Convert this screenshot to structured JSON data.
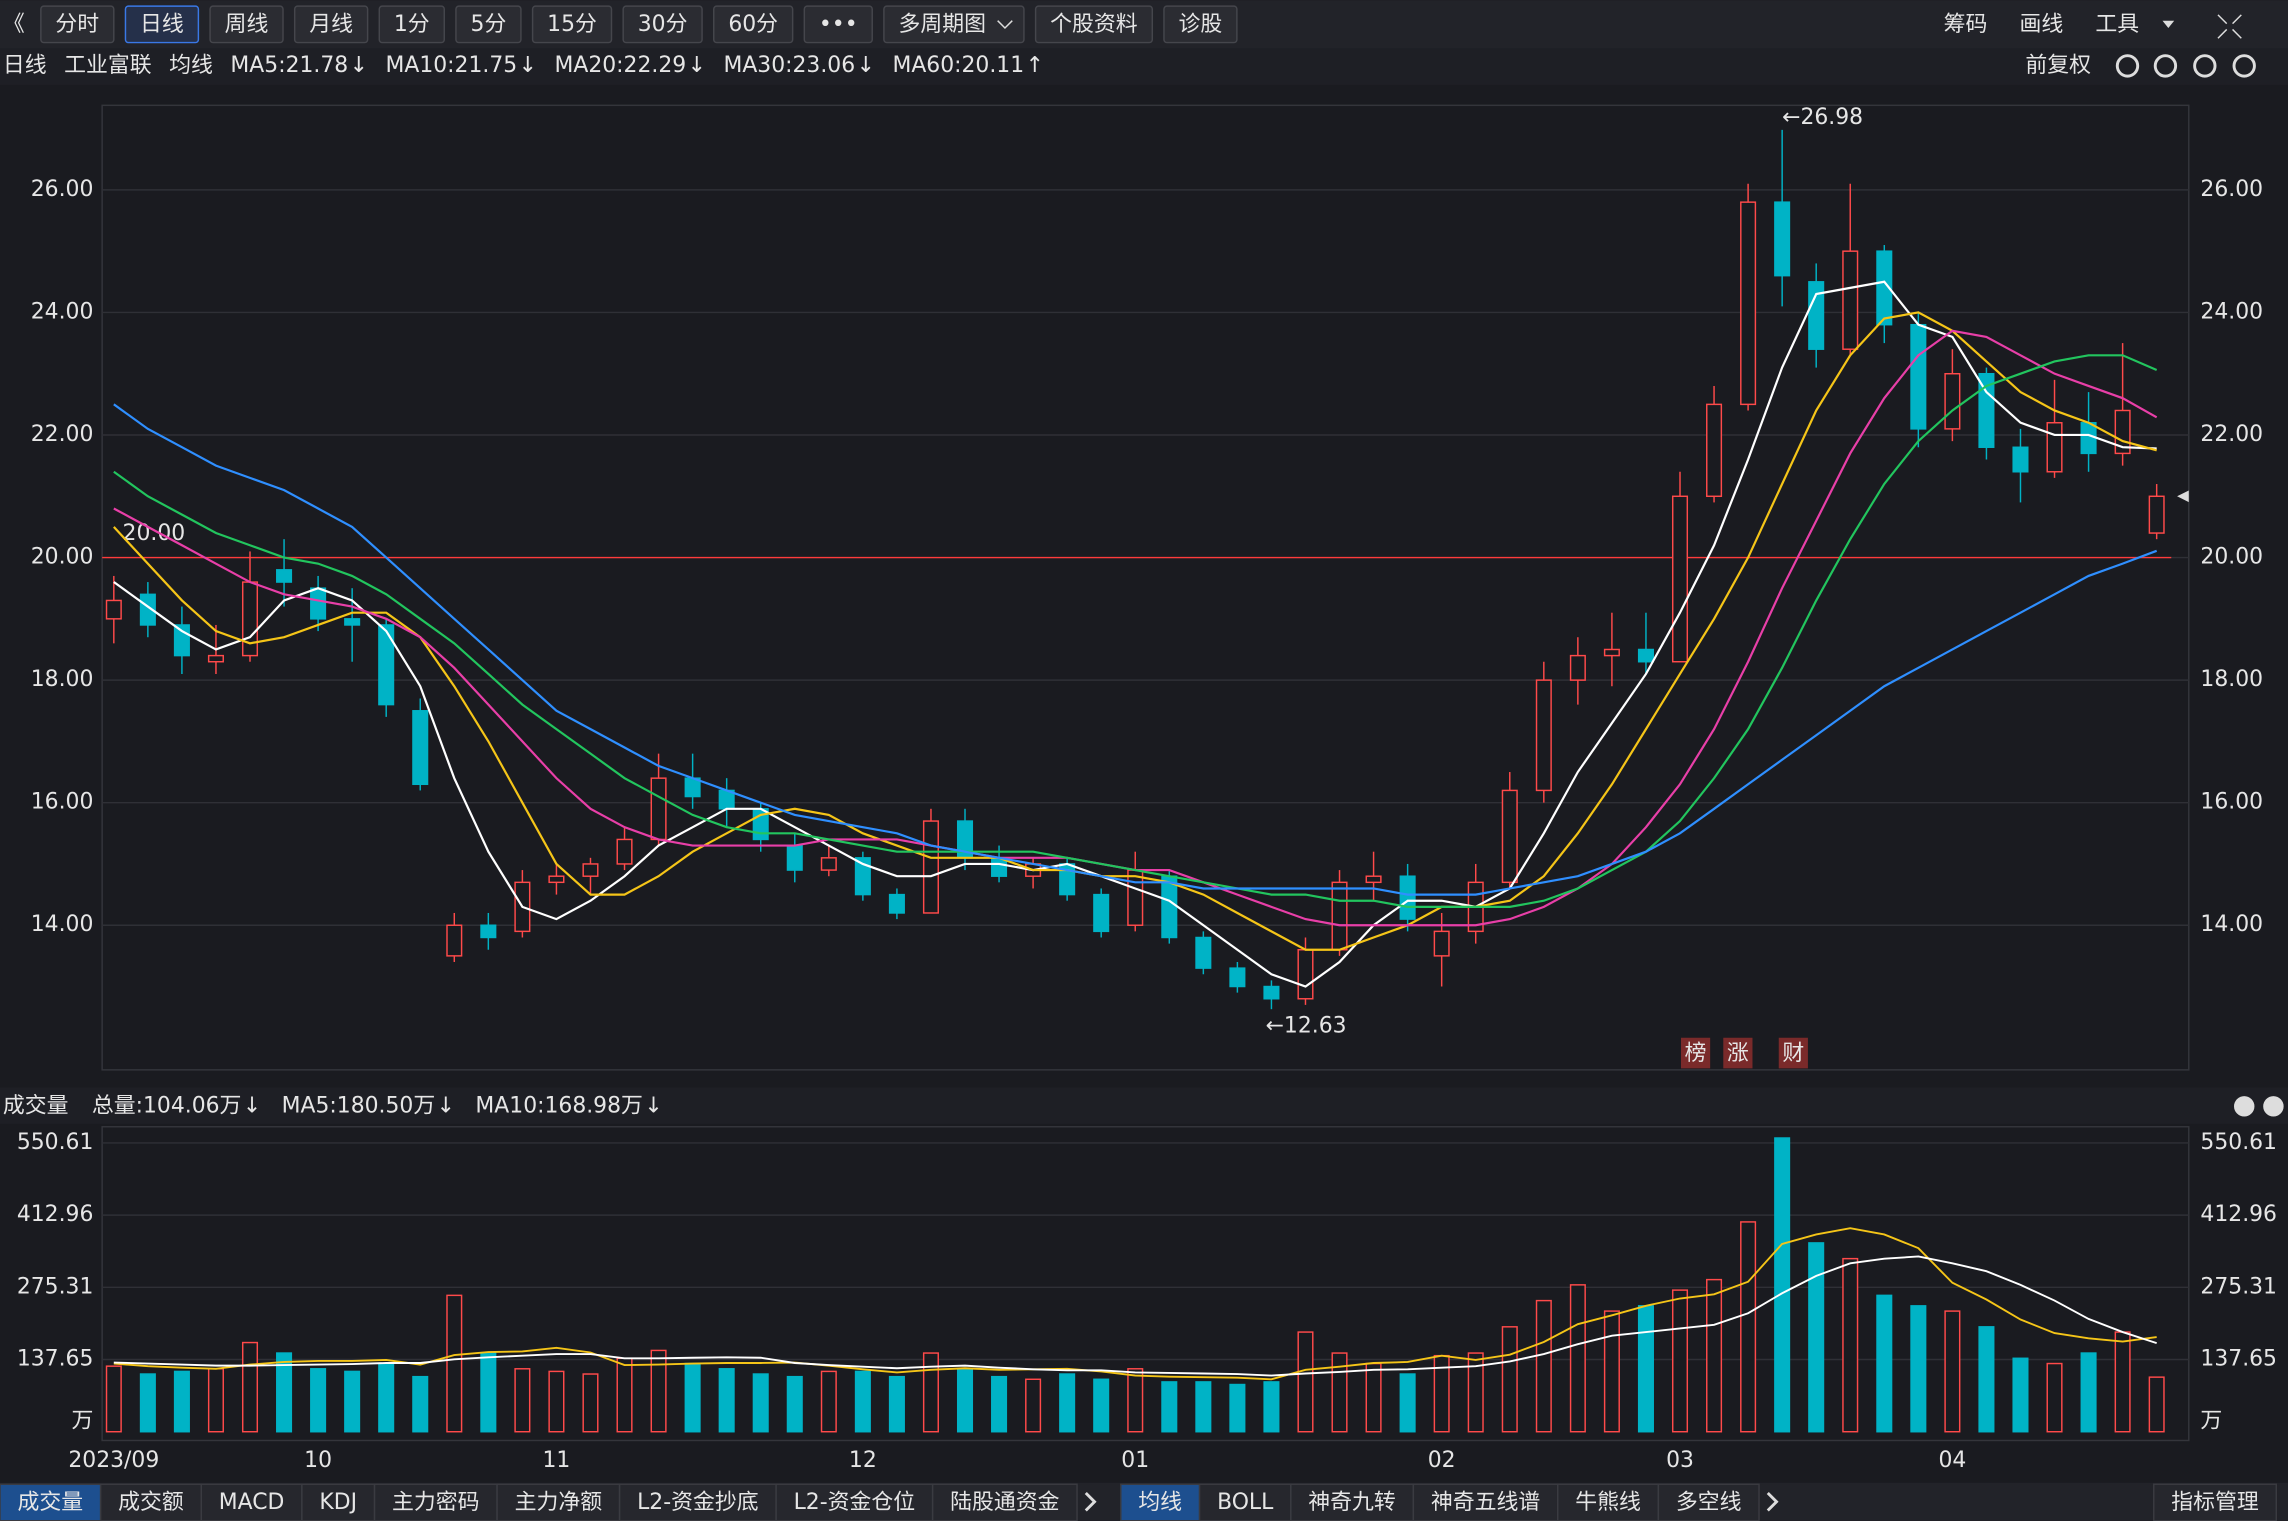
{
  "toolbar": {
    "back": "《",
    "buttons": [
      "分时",
      "日线",
      "周线",
      "月线",
      "1分",
      "5分",
      "15分",
      "30分",
      "60分",
      "•••",
      "多周期图",
      "个股资料",
      "诊股"
    ],
    "active": "日线",
    "right": [
      "筹码",
      "画线",
      "工具"
    ],
    "adjust": "前复权"
  },
  "chart_data": [
    {
      "type": "candlestick",
      "legend": {
        "period": "日线",
        "name": "工业富联",
        "ma": "均线"
      },
      "open": [
        19.0,
        19.4,
        18.9,
        18.3,
        18.4,
        19.8,
        19.5,
        19.0,
        18.9,
        17.5,
        13.5,
        14.0,
        13.9,
        14.7,
        14.8,
        15.0,
        15.4,
        16.4,
        16.2,
        15.9,
        15.3,
        14.9,
        15.1,
        14.5,
        14.2,
        15.7,
        15.1,
        14.8,
        15.0,
        14.5,
        14.0,
        14.8,
        13.8,
        13.3,
        13.0,
        12.8,
        13.6,
        14.7,
        14.8,
        13.5,
        13.9,
        14.7,
        16.2,
        18.0,
        18.4,
        18.5,
        18.3,
        21.0,
        22.5,
        25.8,
        24.5,
        23.4,
        25.0,
        23.8,
        22.1,
        23.0,
        21.8,
        21.4,
        22.2,
        21.7,
        20.4
      ],
      "high": [
        19.7,
        19.6,
        19.2,
        18.9,
        20.1,
        20.3,
        19.7,
        19.5,
        19.0,
        17.7,
        14.2,
        14.2,
        14.9,
        15.0,
        15.1,
        15.6,
        16.8,
        16.8,
        16.4,
        16.0,
        15.5,
        15.3,
        15.2,
        14.6,
        15.9,
        15.9,
        15.3,
        15.1,
        15.1,
        14.6,
        15.2,
        14.9,
        13.9,
        13.4,
        13.1,
        13.8,
        14.9,
        15.2,
        15.0,
        14.2,
        15.0,
        16.5,
        18.3,
        18.7,
        19.1,
        19.1,
        21.4,
        22.8,
        26.1,
        26.98,
        24.8,
        26.1,
        25.1,
        24.0,
        23.4,
        23.1,
        22.1,
        22.9,
        22.7,
        23.5,
        21.2
      ],
      "low": [
        18.6,
        18.7,
        18.1,
        18.1,
        18.3,
        19.2,
        18.8,
        18.3,
        17.4,
        16.2,
        13.4,
        13.6,
        13.8,
        14.5,
        14.5,
        14.9,
        15.3,
        15.9,
        15.6,
        15.2,
        14.7,
        14.8,
        14.4,
        14.1,
        14.2,
        14.9,
        14.7,
        14.6,
        14.4,
        13.8,
        13.9,
        13.7,
        13.2,
        12.9,
        12.63,
        12.7,
        13.5,
        14.4,
        13.9,
        13.0,
        13.7,
        14.6,
        16.0,
        17.6,
        17.9,
        18.1,
        18.3,
        20.9,
        22.4,
        24.1,
        23.1,
        23.3,
        23.5,
        21.8,
        21.9,
        21.6,
        20.9,
        21.3,
        21.4,
        21.5,
        20.3
      ],
      "close": [
        19.3,
        18.9,
        18.4,
        18.4,
        19.6,
        19.6,
        19.0,
        18.9,
        17.6,
        16.3,
        14.0,
        13.8,
        14.7,
        14.8,
        15.0,
        15.4,
        16.4,
        16.1,
        15.9,
        15.4,
        14.9,
        15.1,
        14.5,
        14.2,
        15.7,
        15.1,
        14.8,
        15.0,
        14.5,
        13.9,
        14.9,
        13.8,
        13.3,
        13.0,
        12.8,
        13.6,
        14.7,
        14.8,
        14.1,
        13.9,
        14.7,
        16.2,
        18.0,
        18.4,
        18.5,
        18.3,
        21.0,
        22.5,
        25.8,
        24.6,
        23.4,
        25.0,
        23.8,
        22.1,
        23.0,
        21.8,
        21.4,
        22.2,
        21.7,
        22.4,
        21.0
      ],
      "up_color": "#ff4a4a",
      "down_color": "#00b3c6",
      "series": [
        {
          "name": "MA5:21.78",
          "trend": "↓",
          "color": "#ffffff",
          "values": [
            19.6,
            19.2,
            18.8,
            18.5,
            18.7,
            19.3,
            19.5,
            19.3,
            18.8,
            17.9,
            16.4,
            15.2,
            14.3,
            14.1,
            14.4,
            14.8,
            15.3,
            15.6,
            15.9,
            15.9,
            15.6,
            15.3,
            15.0,
            14.8,
            14.8,
            15.0,
            15.0,
            14.9,
            15.0,
            14.8,
            14.6,
            14.4,
            14.0,
            13.6,
            13.2,
            13.0,
            13.4,
            14.0,
            14.4,
            14.4,
            14.3,
            14.6,
            15.5,
            16.5,
            17.3,
            18.1,
            19.1,
            20.2,
            21.6,
            23.1,
            24.3,
            24.4,
            24.5,
            23.8,
            23.6,
            22.7,
            22.2,
            22.0,
            22.0,
            21.8,
            21.78
          ]
        },
        {
          "name": "MA10:21.75",
          "trend": "↓",
          "color": "#f5c518",
          "values": [
            20.5,
            19.9,
            19.3,
            18.8,
            18.6,
            18.7,
            18.9,
            19.1,
            19.1,
            18.7,
            17.9,
            17.0,
            16.0,
            15.0,
            14.5,
            14.5,
            14.8,
            15.2,
            15.5,
            15.8,
            15.9,
            15.8,
            15.5,
            15.3,
            15.1,
            15.1,
            15.1,
            14.9,
            14.9,
            14.8,
            14.8,
            14.7,
            14.5,
            14.2,
            13.9,
            13.6,
            13.6,
            13.8,
            14.0,
            14.3,
            14.3,
            14.4,
            14.8,
            15.5,
            16.3,
            17.2,
            18.1,
            19.0,
            20.0,
            21.2,
            22.4,
            23.3,
            23.9,
            24.0,
            23.7,
            23.2,
            22.7,
            22.4,
            22.2,
            21.9,
            21.75
          ]
        },
        {
          "name": "MA20:22.29",
          "trend": "↓",
          "color": "#e83fa8",
          "values": [
            20.8,
            20.5,
            20.2,
            19.9,
            19.6,
            19.4,
            19.3,
            19.2,
            19.0,
            18.7,
            18.2,
            17.6,
            17.0,
            16.4,
            15.9,
            15.6,
            15.4,
            15.3,
            15.3,
            15.3,
            15.3,
            15.4,
            15.4,
            15.4,
            15.3,
            15.2,
            15.1,
            15.1,
            15.1,
            15.0,
            14.9,
            14.9,
            14.7,
            14.5,
            14.3,
            14.1,
            14.0,
            14.0,
            14.0,
            14.0,
            14.0,
            14.1,
            14.3,
            14.6,
            15.0,
            15.6,
            16.3,
            17.2,
            18.3,
            19.5,
            20.6,
            21.7,
            22.6,
            23.3,
            23.7,
            23.6,
            23.3,
            23.0,
            22.8,
            22.6,
            22.29
          ]
        },
        {
          "name": "MA30:23.06",
          "trend": "↓",
          "color": "#22c55e",
          "values": [
            21.4,
            21.0,
            20.7,
            20.4,
            20.2,
            20.0,
            19.9,
            19.7,
            19.4,
            19.0,
            18.6,
            18.1,
            17.6,
            17.2,
            16.8,
            16.4,
            16.1,
            15.8,
            15.6,
            15.5,
            15.5,
            15.4,
            15.3,
            15.2,
            15.2,
            15.2,
            15.2,
            15.2,
            15.1,
            15.0,
            14.9,
            14.8,
            14.7,
            14.6,
            14.5,
            14.5,
            14.4,
            14.4,
            14.3,
            14.3,
            14.3,
            14.3,
            14.4,
            14.6,
            14.9,
            15.2,
            15.7,
            16.4,
            17.2,
            18.2,
            19.3,
            20.3,
            21.2,
            21.9,
            22.4,
            22.8,
            23.0,
            23.2,
            23.3,
            23.3,
            23.06
          ]
        },
        {
          "name": "MA60:20.11",
          "trend": "↑",
          "color": "#2f8fff",
          "values": [
            22.5,
            22.1,
            21.8,
            21.5,
            21.3,
            21.1,
            20.8,
            20.5,
            20.0,
            19.5,
            19.0,
            18.5,
            18.0,
            17.5,
            17.2,
            16.9,
            16.6,
            16.4,
            16.2,
            16.0,
            15.8,
            15.7,
            15.6,
            15.5,
            15.3,
            15.2,
            15.1,
            15.0,
            14.9,
            14.8,
            14.7,
            14.7,
            14.6,
            14.6,
            14.6,
            14.6,
            14.6,
            14.6,
            14.5,
            14.5,
            14.5,
            14.6,
            14.7,
            14.8,
            15.0,
            15.2,
            15.5,
            15.9,
            16.3,
            16.7,
            17.1,
            17.5,
            17.9,
            18.2,
            18.5,
            18.8,
            19.1,
            19.4,
            19.7,
            19.9,
            20.11
          ]
        }
      ],
      "ylim": [
        11.64,
        27.38
      ],
      "yticks": [
        {
          "value": 14,
          "label": "14.00"
        },
        {
          "value": 16,
          "label": "16.00"
        },
        {
          "value": 18,
          "label": "18.00"
        },
        {
          "value": 20,
          "label": "20.00"
        },
        {
          "value": 22,
          "label": "22.00"
        },
        {
          "value": 24,
          "label": "24.00"
        },
        {
          "value": 26,
          "label": "26.00"
        }
      ],
      "hline": {
        "value": 20,
        "label": "20.00",
        "color": "#ff3b3b"
      },
      "high_label": "←26.98",
      "low_label": "←12.63",
      "badges": [
        "榜",
        "涨",
        "财"
      ],
      "grid": true
    },
    {
      "type": "volume",
      "title": "成交量",
      "total_label": "总量:104.06万",
      "total_trend": "↓",
      "categories": [
        "2023/09",
        null,
        null,
        null,
        null,
        null,
        "10",
        null,
        null,
        null,
        null,
        null,
        null,
        "11",
        null,
        null,
        null,
        null,
        null,
        null,
        null,
        null,
        "12",
        null,
        null,
        null,
        null,
        null,
        null,
        null,
        "01",
        null,
        null,
        null,
        null,
        null,
        null,
        null,
        null,
        "02",
        null,
        null,
        null,
        null,
        null,
        null,
        "03",
        null,
        null,
        null,
        null,
        null,
        null,
        null,
        "04",
        null,
        null,
        null,
        null,
        null,
        null
      ],
      "values": [
        125,
        110,
        115,
        120,
        170,
        150,
        120,
        115,
        130,
        105,
        260,
        150,
        120,
        115,
        110,
        140,
        155,
        130,
        120,
        110,
        105,
        115,
        115,
        105,
        150,
        120,
        105,
        100,
        110,
        100,
        120,
        95,
        95,
        90,
        95,
        190,
        150,
        130,
        110,
        145,
        150,
        200,
        250,
        280,
        230,
        240,
        270,
        290,
        400,
        560,
        360,
        330,
        260,
        240,
        230,
        200,
        140,
        130,
        150,
        190,
        104.06
      ],
      "series": [
        {
          "name": "MA5:180.50万",
          "trend": "↓",
          "color": "#f5c518",
          "values": [
            130,
            125,
            122,
            120,
            128,
            133,
            135,
            135,
            137,
            128,
            146,
            152,
            153,
            160,
            151,
            127,
            128,
            130,
            131,
            131,
            132,
            126,
            119,
            113,
            118,
            121,
            118,
            119,
            120,
            115,
            107,
            105,
            104,
            103,
            100,
            118,
            124,
            131,
            133,
            145,
            137,
            147,
            171,
            205,
            222,
            240,
            254,
            262,
            286,
            358,
            376,
            388,
            376,
            350,
            284,
            252,
            214,
            188,
            178,
            172,
            180.5
          ]
        },
        {
          "name": "MA10:168.98万",
          "trend": "↓",
          "color": "#ffffff",
          "values": [
            132,
            130,
            128,
            126,
            126,
            127,
            128,
            129,
            131,
            131,
            138,
            142,
            145,
            148,
            148,
            140,
            140,
            141,
            142,
            141,
            131,
            127,
            124,
            121,
            124,
            126,
            122,
            119,
            117,
            117,
            113,
            112,
            111,
            110,
            107,
            111,
            114,
            118,
            119,
            122,
            125,
            134,
            148,
            167,
            183,
            190,
            197,
            204,
            226,
            264,
            297,
            321,
            330,
            334,
            321,
            306,
            280,
            250,
            215,
            190,
            168.98
          ]
        }
      ],
      "ylim": [
        0,
        587
      ],
      "yticks": [
        137.65,
        275.31,
        412.96,
        550.61
      ],
      "unit": "万",
      "grid": true
    }
  ],
  "tabs": {
    "left": [
      "成交量",
      "成交额",
      "MACD",
      "KDJ",
      "主力密码",
      "主力净额",
      "L2-资金抄底",
      "L2-资金仓位",
      "陆股通资金"
    ],
    "indicators": [
      "均线",
      "BOLL",
      "神奇九转",
      "神奇五线谱",
      "牛熊线",
      "多空线"
    ],
    "manage": "指标管理"
  }
}
